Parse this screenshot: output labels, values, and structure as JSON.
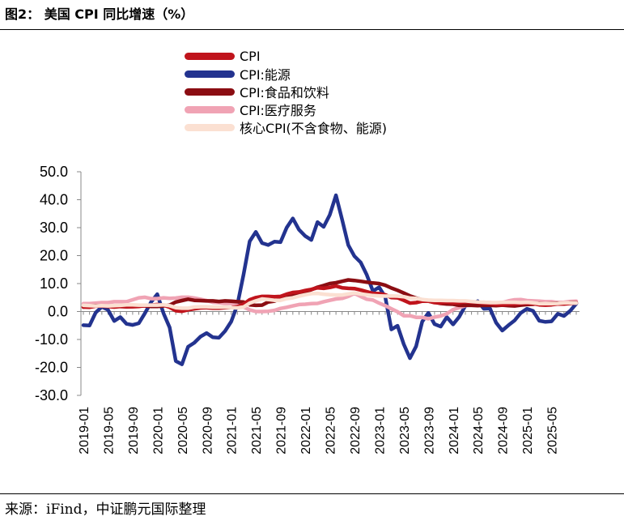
{
  "figure": {
    "title": "图2：  美国 CPI 同比增速（%）",
    "source": "来源：iFind，中证鹏元国际整理"
  },
  "chart_data": {
    "type": "line",
    "legend_position": "top-center",
    "grid": false,
    "ylim": [
      -30,
      50
    ],
    "yticks": [
      "50.0",
      "40.0",
      "30.0",
      "20.0",
      "10.0",
      "0.0",
      "-10.0",
      "-20.0",
      "-30.0"
    ],
    "ytick_values": [
      50,
      40,
      30,
      20,
      10,
      0,
      -10,
      -20,
      -30
    ],
    "x": [
      "2019-01",
      "2019-02",
      "2019-03",
      "2019-04",
      "2019-05",
      "2019-06",
      "2019-07",
      "2019-08",
      "2019-09",
      "2019-10",
      "2019-11",
      "2019-12",
      "2020-01",
      "2020-02",
      "2020-03",
      "2020-04",
      "2020-05",
      "2020-06",
      "2020-07",
      "2020-08",
      "2020-09",
      "2020-10",
      "2020-11",
      "2020-12",
      "2021-01",
      "2021-02",
      "2021-03",
      "2021-04",
      "2021-05",
      "2021-06",
      "2021-07",
      "2021-08",
      "2021-09",
      "2021-10",
      "2021-11",
      "2021-12",
      "2022-01",
      "2022-02",
      "2022-03",
      "2022-04",
      "2022-05",
      "2022-06",
      "2022-07",
      "2022-08",
      "2022-09",
      "2022-10",
      "2022-11",
      "2022-12",
      "2023-01",
      "2023-02",
      "2023-03",
      "2023-04",
      "2023-05",
      "2023-06",
      "2023-07",
      "2023-08",
      "2023-09",
      "2023-10",
      "2023-11",
      "2023-12",
      "2024-01",
      "2024-02",
      "2024-03",
      "2024-04",
      "2024-05",
      "2024-06",
      "2024-07",
      "2024-08",
      "2024-09",
      "2024-10",
      "2024-11",
      "2024-12",
      "2025-01",
      "2025-02",
      "2025-03",
      "2025-04",
      "2025-05",
      "2025-06",
      "2025-07",
      "2025-08",
      "2025-09"
    ],
    "xtick_labels": [
      "2019-01",
      "2019-05",
      "2019-09",
      "2020-01",
      "2020-05",
      "2020-09",
      "2021-01",
      "2021-05",
      "2021-09",
      "2022-01",
      "2022-05",
      "2022-09",
      "2023-01",
      "2023-05",
      "2023-09",
      "2024-01",
      "2024-05",
      "2024-09",
      "2025-01",
      "2025-05"
    ],
    "series": [
      {
        "name": "CPI",
        "color": "#c0141c",
        "values": [
          1.6,
          1.5,
          1.9,
          2.0,
          1.8,
          1.6,
          1.8,
          1.7,
          1.7,
          1.8,
          2.1,
          2.3,
          2.5,
          2.3,
          1.5,
          0.3,
          0.1,
          0.6,
          1.0,
          1.3,
          1.4,
          1.2,
          1.2,
          1.4,
          1.4,
          1.7,
          2.6,
          4.2,
          5.0,
          5.4,
          5.4,
          5.3,
          5.4,
          6.2,
          6.8,
          7.0,
          7.5,
          7.9,
          8.5,
          8.3,
          8.6,
          9.1,
          8.5,
          8.3,
          8.2,
          7.7,
          7.1,
          6.5,
          6.4,
          6.0,
          5.0,
          4.9,
          4.0,
          3.0,
          3.2,
          3.7,
          3.7,
          3.2,
          3.1,
          3.4,
          3.1,
          3.2,
          3.5,
          3.4,
          3.3,
          3.0,
          2.9,
          2.5,
          2.4,
          2.6,
          2.7,
          2.9,
          3.0,
          2.8,
          2.4,
          2.3,
          2.4,
          2.7,
          2.7,
          2.9,
          3.0
        ]
      },
      {
        "name": "CPI:能源",
        "color": "#23338f",
        "values": [
          -4.9,
          -5.0,
          -0.4,
          1.7,
          0.6,
          -3.4,
          -2.0,
          -4.4,
          -4.8,
          -4.2,
          -0.6,
          3.4,
          6.2,
          -0.6,
          -5.7,
          -17.7,
          -18.9,
          -12.6,
          -11.2,
          -9.0,
          -7.7,
          -9.2,
          -9.4,
          -7.0,
          -3.6,
          2.4,
          13.2,
          25.1,
          28.5,
          24.5,
          23.8,
          25.0,
          24.8,
          30.0,
          33.3,
          29.3,
          27.0,
          25.6,
          32.0,
          30.3,
          34.6,
          41.6,
          32.9,
          23.8,
          19.8,
          17.6,
          13.1,
          7.3,
          8.7,
          5.2,
          -6.4,
          -5.1,
          -11.7,
          -16.7,
          -12.5,
          -3.6,
          -0.5,
          -4.5,
          -5.4,
          -2.0,
          -4.6,
          -1.9,
          2.1,
          2.6,
          3.7,
          1.0,
          1.1,
          -4.0,
          -6.8,
          -4.9,
          -3.2,
          -0.5,
          1.0,
          0.2,
          -3.3,
          -3.7,
          -3.5,
          -0.8,
          -1.6,
          0.2,
          2.8
        ]
      },
      {
        "name": "CPI:食品和饮料",
        "color": "#8b0d12",
        "values": [
          1.6,
          2.0,
          2.1,
          1.9,
          1.9,
          2.0,
          1.8,
          1.7,
          1.8,
          2.0,
          2.0,
          1.8,
          1.8,
          2.0,
          2.3,
          3.4,
          3.9,
          4.4,
          4.0,
          3.9,
          3.8,
          3.8,
          3.6,
          3.8,
          3.7,
          3.5,
          3.4,
          2.4,
          2.2,
          2.3,
          3.4,
          3.7,
          4.6,
          5.3,
          6.0,
          6.2,
          6.9,
          7.8,
          8.7,
          9.3,
          10.0,
          10.3,
          10.8,
          11.3,
          11.1,
          10.8,
          10.5,
          10.2,
          10.0,
          9.4,
          8.4,
          7.6,
          6.6,
          5.6,
          4.8,
          4.2,
          3.7,
          3.3,
          2.9,
          2.7,
          2.6,
          2.2,
          2.2,
          2.2,
          2.1,
          2.2,
          2.2,
          2.1,
          2.3,
          2.1,
          2.0,
          2.3,
          2.5,
          2.6,
          2.9,
          2.8,
          2.9,
          3.0,
          2.9,
          3.2,
          3.1
        ]
      },
      {
        "name": "CPI:医疗服务",
        "color": "#f0a3b4",
        "values": [
          2.8,
          2.8,
          3.0,
          3.2,
          3.2,
          3.5,
          3.5,
          3.5,
          4.2,
          4.9,
          5.1,
          4.6,
          4.6,
          4.9,
          4.7,
          4.8,
          5.1,
          5.1,
          4.8,
          4.4,
          3.9,
          3.3,
          3.2,
          2.9,
          2.9,
          2.2,
          1.6,
          0.6,
          0.0,
          0.0,
          0.1,
          0.4,
          1.1,
          1.5,
          2.0,
          2.5,
          2.6,
          2.8,
          2.9,
          3.5,
          4.0,
          4.5,
          4.7,
          5.4,
          6.5,
          5.4,
          4.4,
          4.1,
          3.0,
          2.1,
          1.0,
          -0.1,
          -1.5,
          -1.5,
          -2.1,
          -2.1,
          -2.6,
          -2.0,
          -1.6,
          -0.8,
          0.7,
          1.4,
          2.1,
          2.7,
          3.1,
          3.3,
          3.2,
          3.0,
          3.2,
          3.8,
          4.2,
          4.3,
          3.9,
          3.8,
          3.7,
          3.5,
          3.5,
          3.2,
          3.3,
          3.6,
          3.7
        ]
      },
      {
        "name": "核心CPI(不含食物、能源)",
        "color": "#fbe0d2",
        "values": [
          2.2,
          2.1,
          2.0,
          2.1,
          2.0,
          2.1,
          2.2,
          2.4,
          2.4,
          2.3,
          2.3,
          2.3,
          2.3,
          2.4,
          2.1,
          1.4,
          1.2,
          1.2,
          1.6,
          1.7,
          1.7,
          1.6,
          1.6,
          1.6,
          1.4,
          1.3,
          1.6,
          3.0,
          3.8,
          4.5,
          4.3,
          4.0,
          4.0,
          4.6,
          4.9,
          5.5,
          6.0,
          6.4,
          6.5,
          6.2,
          6.0,
          5.9,
          5.9,
          6.3,
          6.6,
          6.3,
          6.0,
          5.7,
          5.6,
          5.5,
          5.6,
          5.5,
          5.3,
          4.8,
          4.7,
          4.3,
          4.1,
          4.0,
          4.0,
          3.9,
          3.9,
          3.8,
          3.8,
          3.6,
          3.4,
          3.3,
          3.2,
          3.2,
          3.3,
          3.3,
          3.3,
          3.2,
          3.3,
          3.1,
          2.8,
          2.8,
          2.8,
          2.9,
          3.1,
          3.1,
          3.0
        ]
      }
    ]
  }
}
